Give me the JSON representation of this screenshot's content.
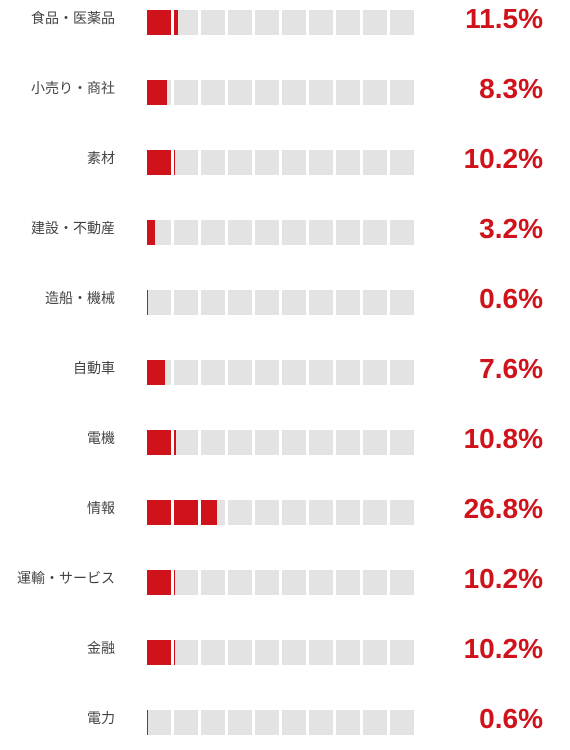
{
  "chart_data": {
    "type": "bar",
    "orientation": "horizontal",
    "unit_per_cell_percent": 10,
    "cells_per_row": 10,
    "categories": [
      "食品・医薬品",
      "小売り・商社",
      "素材",
      "建設・不動産",
      "造船・機械",
      "自動車",
      "電機",
      "情報",
      "運輸・サービス",
      "金融",
      "電力"
    ],
    "values": [
      11.5,
      8.3,
      10.2,
      3.2,
      0.6,
      7.6,
      10.8,
      26.8,
      10.2,
      10.2,
      0.6
    ],
    "value_labels": [
      "11.5%",
      "8.3%",
      "10.2%",
      "3.2%",
      "0.6%",
      "7.6%",
      "10.8%",
      "26.8%",
      "10.2%",
      "10.2%",
      "0.6%"
    ],
    "xlim": [
      0,
      100
    ],
    "colors": {
      "fill": "#d0121b",
      "empty": "#e3e3e3",
      "value_text": "#d0121b",
      "label_text": "#444444"
    }
  }
}
